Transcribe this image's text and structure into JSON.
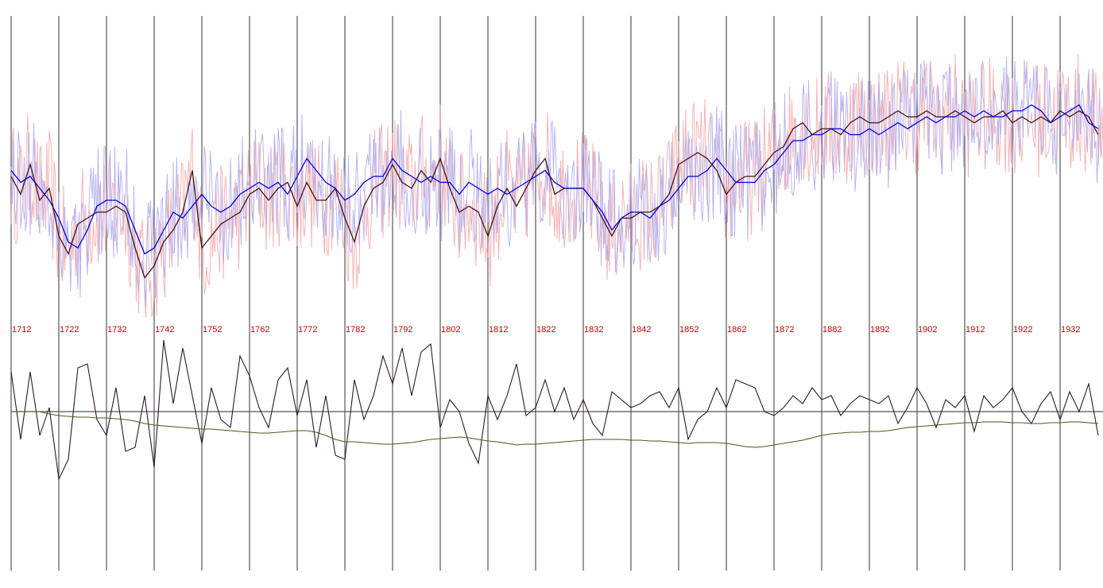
{
  "colors": {
    "grid": "#555555",
    "tick_label": "#cc0000",
    "series_a_raw": "#f4a6a6",
    "series_b_raw": "#a9a9f2",
    "series_a_smooth": "#4a0f12",
    "series_b_smooth": "#0000dd",
    "anomaly": "#2a1a2a",
    "trend": "#4a5a1a",
    "zero_line": "#555555"
  },
  "chart_data": [
    {
      "type": "line",
      "title": "",
      "xlabel": "",
      "ylabel": "",
      "x_range": [
        1712,
        1941
      ],
      "ylim": [
        -1.6,
        1.6
      ],
      "tick_labels": [
        "1712",
        "1722",
        "1732",
        "1742",
        "1752",
        "1762",
        "1772",
        "1782",
        "1792",
        "1802",
        "1812",
        "1822",
        "1832",
        "1842",
        "1852",
        "1862",
        "1872",
        "1882",
        "1892",
        "1902",
        "1912",
        "1922",
        "1932"
      ],
      "grid": "vertical",
      "x_smooth": [
        1712,
        1714,
        1716,
        1718,
        1720,
        1722,
        1724,
        1726,
        1728,
        1730,
        1732,
        1734,
        1736,
        1738,
        1740,
        1742,
        1744,
        1746,
        1748,
        1750,
        1752,
        1754,
        1756,
        1758,
        1760,
        1762,
        1764,
        1766,
        1768,
        1770,
        1772,
        1774,
        1776,
        1778,
        1780,
        1782,
        1784,
        1786,
        1788,
        1790,
        1792,
        1794,
        1796,
        1798,
        1800,
        1802,
        1804,
        1806,
        1808,
        1810,
        1812,
        1814,
        1816,
        1818,
        1820,
        1822,
        1824,
        1826,
        1828,
        1830,
        1832,
        1834,
        1836,
        1838,
        1840,
        1842,
        1844,
        1846,
        1848,
        1850,
        1852,
        1854,
        1856,
        1858,
        1860,
        1862,
        1864,
        1866,
        1868,
        1870,
        1872,
        1874,
        1876,
        1878,
        1880,
        1882,
        1884,
        1886,
        1888,
        1890,
        1892,
        1894,
        1896,
        1898,
        1900,
        1902,
        1904,
        1906,
        1908,
        1910,
        1912,
        1914,
        1916,
        1918,
        1920,
        1922,
        1924,
        1926,
        1928,
        1930,
        1932,
        1934,
        1936,
        1938,
        1940
      ],
      "series": [
        {
          "color_key": "series_a_smooth",
          "values": [
            0.0,
            -0.15,
            0.1,
            -0.2,
            -0.1,
            -0.5,
            -0.65,
            -0.4,
            -0.35,
            -0.3,
            -0.3,
            -0.25,
            -0.3,
            -0.6,
            -0.85,
            -0.75,
            -0.55,
            -0.45,
            -0.3,
            0.05,
            -0.6,
            -0.5,
            -0.4,
            -0.35,
            -0.3,
            -0.15,
            -0.1,
            -0.2,
            -0.1,
            -0.05,
            -0.25,
            -0.05,
            -0.2,
            -0.2,
            -0.1,
            -0.35,
            -0.55,
            -0.25,
            -0.1,
            -0.05,
            0.1,
            -0.05,
            -0.1,
            0.05,
            -0.05,
            0.15,
            -0.1,
            -0.3,
            -0.25,
            -0.3,
            -0.5,
            -0.25,
            -0.1,
            -0.25,
            -0.1,
            0.05,
            0.15,
            -0.15,
            -0.1,
            -0.1,
            -0.1,
            -0.2,
            -0.35,
            -0.5,
            -0.35,
            -0.35,
            -0.3,
            -0.3,
            -0.25,
            -0.15,
            0.1,
            0.15,
            0.2,
            0.15,
            0.05,
            -0.15,
            -0.05,
            0.0,
            0.0,
            0.1,
            0.2,
            0.25,
            0.4,
            0.45,
            0.35,
            0.4,
            0.4,
            0.35,
            0.45,
            0.5,
            0.45,
            0.45,
            0.5,
            0.55,
            0.5,
            0.5,
            0.55,
            0.5,
            0.5,
            0.55,
            0.5,
            0.45,
            0.5,
            0.5,
            0.55,
            0.45,
            0.5,
            0.45,
            0.5,
            0.45,
            0.55,
            0.5,
            0.55,
            0.5,
            0.35
          ]
        },
        {
          "color_key": "series_b_smooth",
          "values": [
            0.05,
            -0.05,
            0.0,
            -0.1,
            -0.2,
            -0.35,
            -0.55,
            -0.6,
            -0.45,
            -0.25,
            -0.2,
            -0.2,
            -0.25,
            -0.45,
            -0.65,
            -0.6,
            -0.45,
            -0.3,
            -0.35,
            -0.25,
            -0.15,
            -0.25,
            -0.3,
            -0.25,
            -0.15,
            -0.1,
            -0.05,
            -0.1,
            -0.05,
            -0.15,
            0.0,
            0.15,
            0.05,
            -0.05,
            -0.1,
            -0.2,
            -0.15,
            -0.05,
            0.0,
            0.0,
            0.15,
            0.05,
            0.0,
            -0.05,
            0.0,
            -0.05,
            -0.05,
            -0.15,
            -0.05,
            -0.1,
            -0.15,
            -0.1,
            -0.15,
            -0.1,
            -0.05,
            0.0,
            0.05,
            -0.05,
            -0.1,
            -0.1,
            -0.1,
            -0.2,
            -0.3,
            -0.45,
            -0.35,
            -0.3,
            -0.3,
            -0.35,
            -0.25,
            -0.2,
            -0.1,
            0.0,
            0.0,
            0.05,
            0.15,
            0.05,
            -0.05,
            -0.05,
            -0.05,
            0.05,
            0.1,
            0.2,
            0.3,
            0.3,
            0.35,
            0.35,
            0.4,
            0.4,
            0.35,
            0.35,
            0.4,
            0.35,
            0.4,
            0.45,
            0.4,
            0.45,
            0.5,
            0.45,
            0.5,
            0.5,
            0.55,
            0.5,
            0.55,
            0.5,
            0.5,
            0.55,
            0.55,
            0.6,
            0.55,
            0.45,
            0.5,
            0.55,
            0.6,
            0.45,
            0.4
          ]
        }
      ]
    },
    {
      "type": "line",
      "title": "",
      "xlabel": "",
      "ylabel": "",
      "x_range": [
        1712,
        1941
      ],
      "ylim": [
        -1.6,
        1.6
      ],
      "grid": "vertical",
      "x": [
        1712,
        1714,
        1716,
        1718,
        1720,
        1722,
        1724,
        1726,
        1728,
        1730,
        1732,
        1734,
        1736,
        1738,
        1740,
        1742,
        1744,
        1746,
        1748,
        1750,
        1752,
        1754,
        1756,
        1758,
        1760,
        1762,
        1764,
        1766,
        1768,
        1770,
        1772,
        1774,
        1776,
        1778,
        1780,
        1782,
        1784,
        1786,
        1788,
        1790,
        1792,
        1794,
        1796,
        1798,
        1800,
        1802,
        1804,
        1806,
        1808,
        1810,
        1812,
        1814,
        1816,
        1818,
        1820,
        1822,
        1824,
        1826,
        1828,
        1830,
        1832,
        1834,
        1836,
        1838,
        1840,
        1842,
        1844,
        1846,
        1848,
        1850,
        1852,
        1854,
        1856,
        1858,
        1860,
        1862,
        1864,
        1866,
        1868,
        1870,
        1872,
        1874,
        1876,
        1878,
        1880,
        1882,
        1884,
        1886,
        1888,
        1890,
        1892,
        1894,
        1896,
        1898,
        1900,
        1902,
        1904,
        1906,
        1908,
        1910,
        1912,
        1914,
        1916,
        1918,
        1920,
        1922,
        1924,
        1926,
        1928,
        1930,
        1932,
        1934,
        1936,
        1938,
        1940
      ],
      "series": [
        {
          "color_key": "anomaly",
          "values": [
            0.5,
            -0.35,
            0.5,
            -0.3,
            0.05,
            -0.85,
            -0.6,
            0.55,
            0.6,
            -0.1,
            -0.3,
            0.3,
            -0.5,
            -0.45,
            0.2,
            -0.7,
            0.9,
            0.1,
            0.8,
            0.2,
            -0.4,
            0.3,
            -0.1,
            -0.2,
            0.7,
            0.45,
            0.05,
            -0.2,
            0.4,
            0.55,
            -0.05,
            0.4,
            -0.45,
            0.2,
            -0.55,
            -0.6,
            0.4,
            -0.1,
            0.2,
            0.7,
            0.35,
            0.8,
            0.2,
            0.75,
            0.85,
            -0.2,
            0.15,
            0.0,
            -0.4,
            -0.65,
            0.2,
            -0.1,
            0.2,
            0.6,
            -0.05,
            0.05,
            0.4,
            0.0,
            0.3,
            -0.1,
            0.15,
            -0.15,
            -0.3,
            0.25,
            0.15,
            0.05,
            0.1,
            0.2,
            0.25,
            0.05,
            0.3,
            -0.35,
            -0.1,
            0.0,
            0.3,
            0.05,
            0.4,
            0.35,
            0.3,
            0.0,
            -0.05,
            0.05,
            0.2,
            0.1,
            0.3,
            0.15,
            0.2,
            -0.05,
            0.1,
            0.2,
            0.15,
            0.1,
            0.2,
            -0.15,
            0.05,
            0.3,
            0.1,
            -0.2,
            0.15,
            0.05,
            0.2,
            -0.25,
            0.2,
            0.05,
            0.15,
            0.3,
            0.0,
            -0.15,
            0.1,
            0.25,
            -0.1,
            0.25,
            0.0,
            0.35,
            -0.3
          ]
        },
        {
          "color_key": "trend",
          "values": [
            0.0,
            0.0,
            0.0,
            0.0,
            -0.03,
            -0.05,
            -0.06,
            -0.07,
            -0.07,
            -0.08,
            -0.08,
            -0.09,
            -0.1,
            -0.12,
            -0.15,
            -0.17,
            -0.18,
            -0.19,
            -0.2,
            -0.21,
            -0.22,
            -0.22,
            -0.23,
            -0.24,
            -0.25,
            -0.26,
            -0.27,
            -0.27,
            -0.26,
            -0.25,
            -0.24,
            -0.24,
            -0.26,
            -0.3,
            -0.35,
            -0.38,
            -0.38,
            -0.39,
            -0.4,
            -0.41,
            -0.41,
            -0.4,
            -0.39,
            -0.37,
            -0.35,
            -0.34,
            -0.33,
            -0.32,
            -0.33,
            -0.35,
            -0.37,
            -0.38,
            -0.4,
            -0.42,
            -0.41,
            -0.41,
            -0.4,
            -0.39,
            -0.38,
            -0.37,
            -0.36,
            -0.35,
            -0.35,
            -0.35,
            -0.35,
            -0.36,
            -0.36,
            -0.37,
            -0.37,
            -0.38,
            -0.39,
            -0.4,
            -0.39,
            -0.39,
            -0.39,
            -0.4,
            -0.42,
            -0.44,
            -0.45,
            -0.44,
            -0.42,
            -0.4,
            -0.38,
            -0.36,
            -0.33,
            -0.3,
            -0.28,
            -0.27,
            -0.26,
            -0.26,
            -0.25,
            -0.25,
            -0.24,
            -0.22,
            -0.2,
            -0.19,
            -0.18,
            -0.17,
            -0.16,
            -0.15,
            -0.14,
            -0.14,
            -0.13,
            -0.13,
            -0.13,
            -0.14,
            -0.14,
            -0.15,
            -0.15,
            -0.14,
            -0.14,
            -0.13,
            -0.13,
            -0.14,
            -0.15
          ]
        }
      ]
    }
  ]
}
